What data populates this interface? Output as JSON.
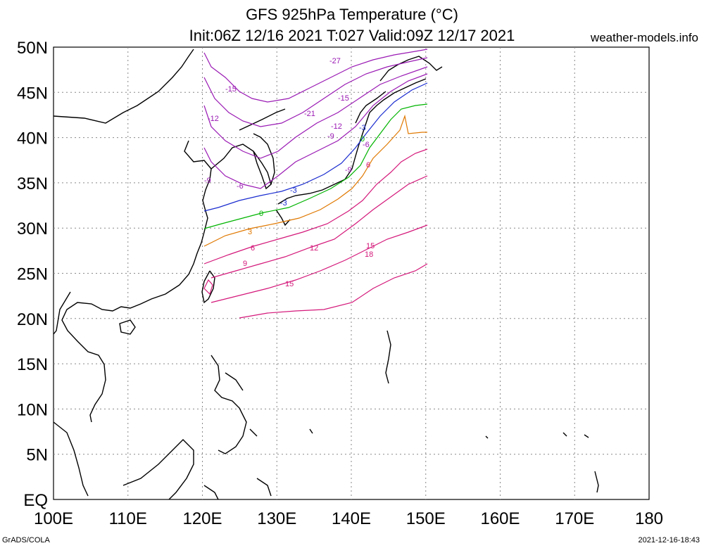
{
  "title_line1": "GFS 925hPa Temperature (°C)",
  "title_line2": "Init:06Z 12/16 2021 T:027 Valid:09Z 12/17 2021",
  "site": "weather-models.info",
  "footer_left": "GrADS/COLA",
  "footer_right": "2021-12-16-18:43",
  "map": {
    "lon_ticks": [
      "100E",
      "110E",
      "120E",
      "130E",
      "140E",
      "150E",
      "160E",
      "170E",
      "180"
    ],
    "lat_ticks": [
      "EQ",
      "5N",
      "10N",
      "15N",
      "20N",
      "25N",
      "30N",
      "35N",
      "40N",
      "45N",
      "50N"
    ],
    "lon_range": [
      100,
      180
    ],
    "lat_range": [
      0,
      50
    ],
    "grid": "dotted",
    "contour_units": "°C",
    "colors": {
      "cold": "#9a1ab4",
      "freeze_minus3": "#1a2ccf",
      "zero": "#00b400",
      "plus3": "#e07800",
      "warm": "#d4187a",
      "coast": "#000000"
    },
    "contour_labels": [
      "-27",
      "-21",
      "-15",
      "-15",
      "-12",
      "-12",
      "-9",
      "-9",
      "-9",
      "-6",
      "-6",
      "-3",
      "-3",
      "-3",
      "0",
      "0",
      "3",
      "6",
      "6",
      "9",
      "12",
      "15",
      "15",
      "18"
    ]
  }
}
